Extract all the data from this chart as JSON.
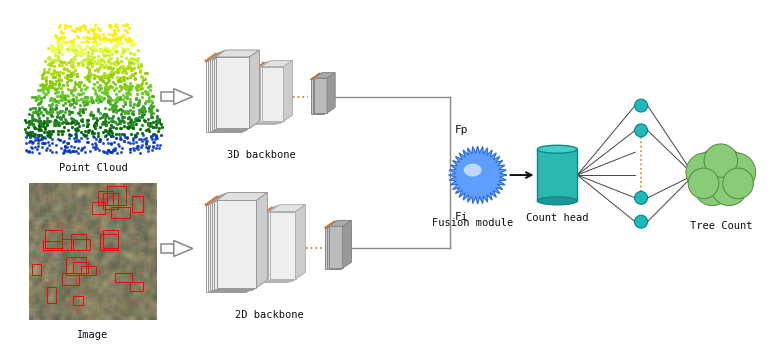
{
  "background_color": "#ffffff",
  "point_cloud_label": "Point Cloud",
  "image_label": "Image",
  "backbone_3d_label": "3D backbone",
  "backbone_2d_label": "2D backbone",
  "fusion_label": "Fusion module",
  "count_head_label": "Count head",
  "tree_count_label": "Tree Count",
  "fp_label": "Fp",
  "fi_label": "Fi",
  "block_orange": "#e07020",
  "dot_color": "#cc8833",
  "neuron_teal": "#20b8b8",
  "tree_green": "#88bb66",
  "tree_edge": "#559944",
  "line_color": "#888888",
  "arrow_color": "#222222"
}
